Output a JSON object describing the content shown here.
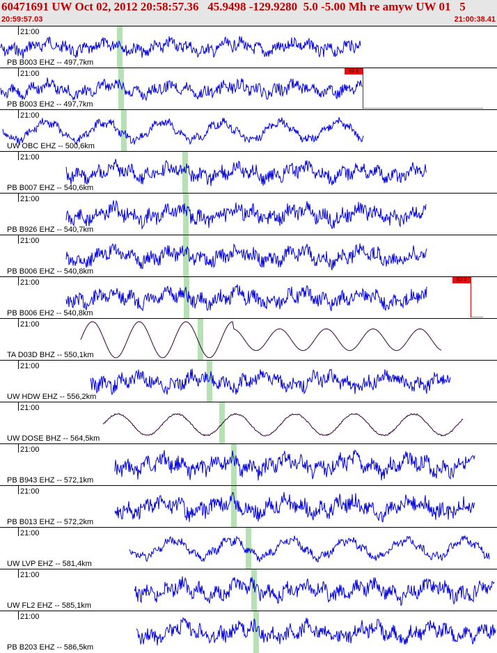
{
  "header": {
    "title": "60471691 UW Oct 02, 2012 20:58:57.36   45.9498 -129.9280  5.0 -5.00 Mh re amyw UW 01   5",
    "start_time": "20:59:57.03",
    "end_time": "21:00:38.41"
  },
  "colors": {
    "trace_blue": "#0000dd",
    "trace_dark": "#330033",
    "pick_green": "#a8dca8",
    "header_red": "#c00000",
    "flag_red": "#e01010"
  },
  "panels": [
    {
      "time": "21:00",
      "label": "PB B003 EHZ -- 497,7km",
      "style": "noise",
      "amp": 13,
      "start": 1,
      "end": 518,
      "pick": 172
    },
    {
      "time": "21:00",
      "label": "PB B003 EH2 -- 497,7km",
      "style": "noise",
      "amp": 13,
      "start": 1,
      "end": 520,
      "pick": 174,
      "flag": {
        "x": 495,
        "text": "S2 2"
      }
    },
    {
      "time": "21:00",
      "label": "UW OBC EHZ -- 500,6km",
      "style": "wave",
      "amp": 15,
      "start": 4,
      "end": 522,
      "pick": 178
    },
    {
      "time": "21:00",
      "label": "PB B007 EHZ -- 540,6km",
      "style": "noise",
      "amp": 15,
      "start": 95,
      "end": 613,
      "pick": 266
    },
    {
      "time": "21:00",
      "label": "PB B926 EHZ -- 540,7km",
      "style": "noise",
      "amp": 16,
      "start": 95,
      "end": 612,
      "pick": 267
    },
    {
      "time": "21:00",
      "label": "PB B006 EHZ -- 540,8km",
      "style": "noise",
      "amp": 15,
      "start": 95,
      "end": 613,
      "pick": 267
    },
    {
      "time": "21:00",
      "label": "PB B006 EH2 -- 540,8km",
      "style": "noise",
      "amp": 15,
      "start": 95,
      "end": 613,
      "pick": 268,
      "flag": {
        "x": 650,
        "text": "S2 2"
      }
    },
    {
      "time": "21:00",
      "label": "TA D03D BHZ -- 550,1km",
      "style": "longperiod",
      "amp": 26,
      "start": 116,
      "end": 634,
      "pick": 288
    },
    {
      "time": "21:00",
      "label": "UW HDW EHZ -- 556,2km",
      "style": "noise",
      "amp": 15,
      "start": 130,
      "end": 647,
      "pick": 301
    },
    {
      "time": "21:00",
      "label": "UW DOSE BHZ -- 564,5km",
      "style": "longperiod2",
      "amp": 22,
      "start": 148,
      "end": 665,
      "pick": 319
    },
    {
      "time": "21:00",
      "label": "PB B943 EHZ -- 572,1km",
      "style": "noise",
      "amp": 17,
      "start": 165,
      "end": 682,
      "pick": 336
    },
    {
      "time": "21:00",
      "label": "PB B013 EHZ -- 572,2km",
      "style": "noise",
      "amp": 17,
      "start": 165,
      "end": 682,
      "pick": 336
    },
    {
      "time": "21:00",
      "label": "UW LVP EHZ -- 581,4km",
      "style": "wave",
      "amp": 15,
      "start": 186,
      "end": 703,
      "pick": 357
    },
    {
      "time": "21:00",
      "label": "UW FL2 EHZ -- 585,1km",
      "style": "noise",
      "amp": 16,
      "start": 193,
      "end": 710,
      "pick": 365
    },
    {
      "time": "21:00",
      "label": "PB B203 EHZ -- 586,5km",
      "style": "noise",
      "amp": 16,
      "start": 196,
      "end": 712,
      "pick": 368
    }
  ]
}
